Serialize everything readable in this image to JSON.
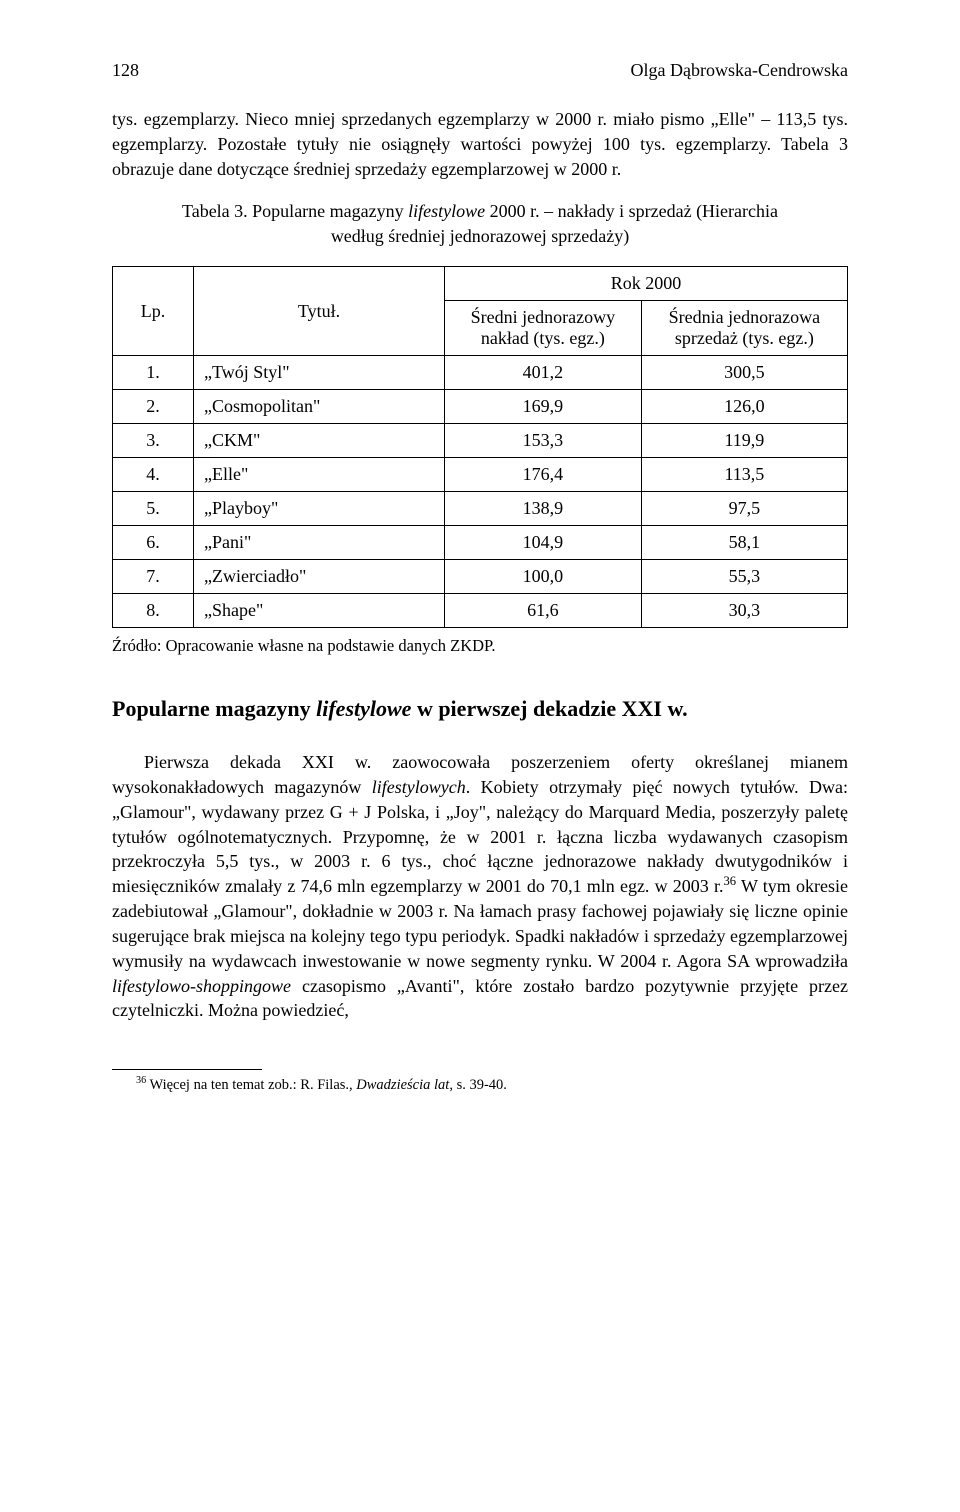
{
  "running_head": {
    "page_number": "128",
    "author": "Olga Dąbrowska-Cendrowska"
  },
  "lead_paragraph": "tys. egzemplarzy. Nieco mniej sprzedanych egzemplarzy w 2000 r. miało pismo „Elle\" – 113,5 tys. egzemplarzy. Pozostałe tytuły nie osiągnęły wartości powyżej 100 tys. egzemplarzy. Tabela 3 obrazuje dane dotyczące średniej sprzedaży egzemplarzowej w 2000 r.",
  "table": {
    "caption_prefix": "Tabela 3. Popularne magazyny ",
    "caption_italic": "lifestylowe",
    "caption_suffix": " 2000 r. – nakłady i sprzedaż (Hierarchia według średniej jednorazowej sprzedaży)",
    "header": {
      "lp": "Lp.",
      "title": "Tytuł.",
      "year": "Rok 2000",
      "col_a": "Średni jednorazowy nakład (tys. egz.)",
      "col_b": "Średnia jednorazowa sprzedaż (tys. egz.)"
    },
    "rows": [
      {
        "lp": "1.",
        "title": "„Twój Styl\"",
        "a": "401,2",
        "b": "300,5"
      },
      {
        "lp": "2.",
        "title": "„Cosmopolitan\"",
        "a": "169,9",
        "b": "126,0"
      },
      {
        "lp": "3.",
        "title": "„CKM\"",
        "a": "153,3",
        "b": "119,9"
      },
      {
        "lp": "4.",
        "title": "„Elle\"",
        "a": "176,4",
        "b": "113,5"
      },
      {
        "lp": "5.",
        "title": "„Playboy\"",
        "a": "138,9",
        "b": "97,5"
      },
      {
        "lp": "6.",
        "title": "„Pani\"",
        "a": "104,9",
        "b": "58,1"
      },
      {
        "lp": "7.",
        "title": "„Zwierciadło\"",
        "a": "100,0",
        "b": "55,3"
      },
      {
        "lp": "8.",
        "title": "„Shape\"",
        "a": "61,6",
        "b": "30,3"
      }
    ],
    "source": "Źródło: Opracowanie własne na podstawie danych ZKDP."
  },
  "section_heading": {
    "prefix": "Popularne magazyny ",
    "italic": "lifestylowe",
    "suffix": " w pierwszej dekadzie XXI w."
  },
  "main_paragraph": {
    "html": "Pierwsza dekada XXI w. zaowocowała poszerzeniem oferty określanej mianem wysokonakładowych magazynów <span class=\"italic\">lifestylowych</span>. Kobiety otrzymały pięć nowych tytułów. Dwa: „Glamour\", wydawany przez G + J Polska, i „Joy\", należący do Marquard Media, poszerzyły paletę tytułów ogólnotematycznych. Przypomnę, że w 2001 r. łączna liczba wydawanych czasopism przekroczyła 5,5 tys., w 2003 r. 6 tys., choć łączne jednorazowe nakłady dwutygodników i miesięczników zmalały z 74,6 mln egzemplarzy w 2001 do 70,1 mln egz. w 2003 r.<sup>36</sup> W tym okresie zadebiutował „Glamour\", dokładnie w 2003 r. Na łamach prasy fachowej pojawiały się liczne opinie sugerujące brak miejsca na kolejny tego typu periodyk. Spadki nakładów i sprzedaży egzemplarzowej wymusiły na wydawcach inwestowanie w nowe segmenty rynku. W 2004 r. Agora SA wprowadziła <span class=\"italic\">lifestylowo-shoppingowe</span> czasopismo „Avanti\", które zostało bardzo pozytywnie przyjęte przez czytelniczki. Można powiedzieć,"
  },
  "footnote": {
    "num": "36",
    "text_prefix": " Więcej na ten temat zob.: R. Filas., ",
    "text_italic": "Dwadzieścia lat",
    "text_suffix": ", s. 39-40."
  }
}
